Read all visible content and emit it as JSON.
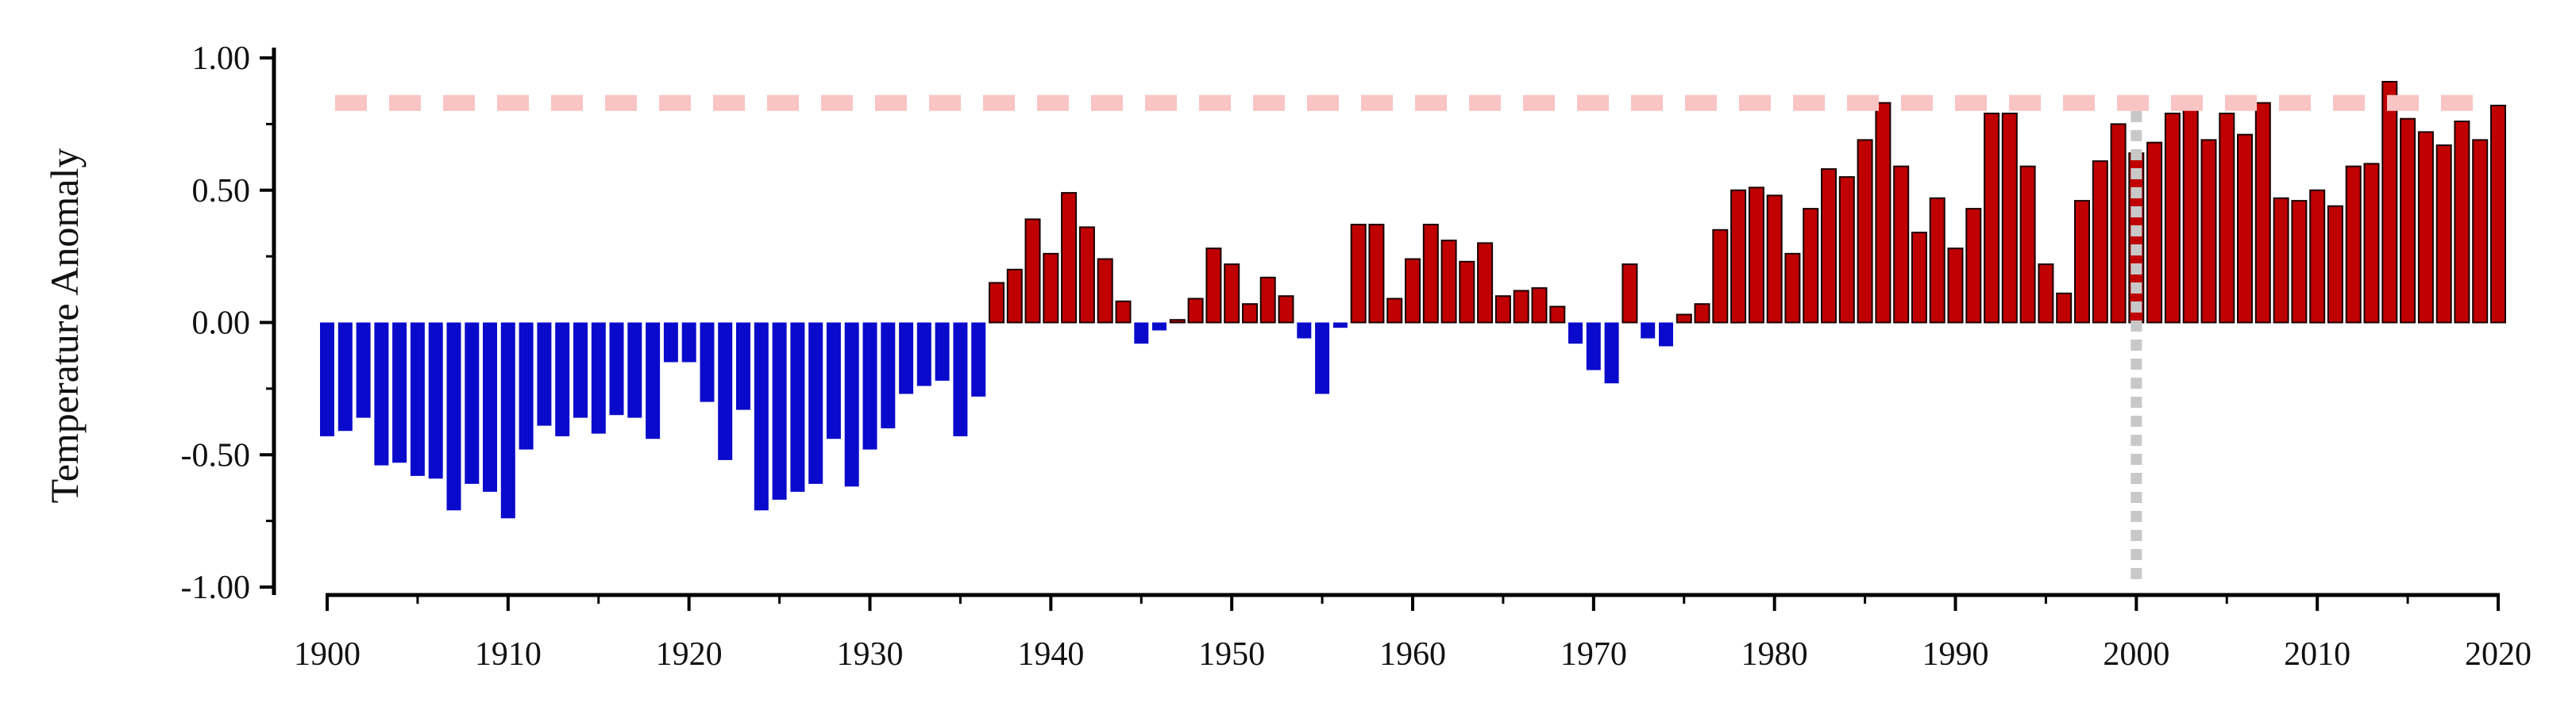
{
  "chart_data": {
    "type": "bar",
    "ylabel": "Temperature Anomaly",
    "xlabel": "",
    "ylim": [
      -1.0,
      1.0
    ],
    "xlim": [
      1900,
      2020
    ],
    "y_ticks": [
      "1.00",
      "0.50",
      "0.00",
      "-0.50",
      "-1.00"
    ],
    "y_tick_values": [
      1.0,
      0.5,
      0.0,
      -0.5,
      -1.0
    ],
    "x_ticks": [
      "1900",
      "1910",
      "1920",
      "1930",
      "1940",
      "1950",
      "1960",
      "1970",
      "1980",
      "1990",
      "2000",
      "2010",
      "2020"
    ],
    "x_tick_values": [
      1900,
      1910,
      1920,
      1930,
      1940,
      1950,
      1960,
      1970,
      1980,
      1990,
      2000,
      2010,
      2020
    ],
    "grid": false,
    "legend": "none",
    "colors": {
      "positive": "#c00000",
      "negative": "#0a0acc",
      "reference_line": "#f9c4c4",
      "year_marker": "#c8c8c8"
    },
    "reference_line_y": 0.83,
    "year_marker_x": 2000,
    "years": [
      1900,
      1901,
      1902,
      1903,
      1904,
      1905,
      1906,
      1907,
      1908,
      1909,
      1910,
      1911,
      1912,
      1913,
      1914,
      1915,
      1916,
      1917,
      1918,
      1919,
      1920,
      1921,
      1922,
      1923,
      1924,
      1925,
      1926,
      1927,
      1928,
      1929,
      1930,
      1931,
      1932,
      1933,
      1934,
      1935,
      1936,
      1937,
      1938,
      1939,
      1940,
      1941,
      1942,
      1943,
      1944,
      1945,
      1946,
      1947,
      1948,
      1949,
      1950,
      1951,
      1952,
      1953,
      1954,
      1955,
      1956,
      1957,
      1958,
      1959,
      1960,
      1961,
      1962,
      1963,
      1964,
      1965,
      1966,
      1967,
      1968,
      1969,
      1970,
      1971,
      1972,
      1973,
      1974,
      1975,
      1976,
      1977,
      1978,
      1979,
      1980,
      1981,
      1982,
      1983,
      1984,
      1985,
      1986,
      1987,
      1988,
      1989,
      1990,
      1991,
      1992,
      1993,
      1994,
      1995,
      1996,
      1997,
      1998,
      1999,
      2000,
      2001,
      2002,
      2003,
      2004,
      2005,
      2006,
      2007,
      2008,
      2009,
      2010,
      2011,
      2012,
      2013,
      2014,
      2015,
      2016,
      2017,
      2018,
      2019,
      2020
    ],
    "values": [
      -0.43,
      -0.41,
      -0.36,
      -0.54,
      -0.53,
      -0.58,
      -0.59,
      -0.71,
      -0.61,
      -0.64,
      -0.74,
      -0.48,
      -0.39,
      -0.43,
      -0.36,
      -0.42,
      -0.35,
      -0.36,
      -0.44,
      -0.15,
      -0.15,
      -0.3,
      -0.52,
      -0.33,
      -0.71,
      -0.67,
      -0.64,
      -0.61,
      -0.44,
      -0.62,
      -0.48,
      -0.4,
      -0.27,
      -0.24,
      -0.22,
      -0.43,
      -0.28,
      0.15,
      0.2,
      0.39,
      0.26,
      0.49,
      0.36,
      0.24,
      0.08,
      -0.08,
      -0.03,
      0.01,
      0.09,
      0.28,
      0.22,
      0.07,
      0.17,
      0.1,
      -0.06,
      -0.27,
      -0.02,
      0.37,
      0.37,
      0.09,
      0.24,
      0.37,
      0.31,
      0.23,
      0.3,
      0.1,
      0.12,
      0.13,
      0.06,
      -0.08,
      -0.18,
      -0.23,
      0.22,
      -0.06,
      -0.09,
      0.03,
      0.07,
      0.35,
      0.5,
      0.51,
      0.48,
      0.26,
      0.43,
      0.58,
      0.55,
      0.69,
      0.83,
      0.59,
      0.34,
      0.47,
      0.28,
      0.43,
      0.79,
      0.79,
      0.59,
      0.22,
      0.11,
      0.46,
      0.61,
      0.75,
      0.64,
      0.68,
      0.79,
      0.81,
      0.69,
      0.79,
      0.71,
      0.83,
      0.47,
      0.46,
      0.5,
      0.44,
      0.59,
      0.6,
      0.91,
      0.77,
      0.72,
      0.67,
      0.76,
      0.69,
      0.82
    ]
  }
}
